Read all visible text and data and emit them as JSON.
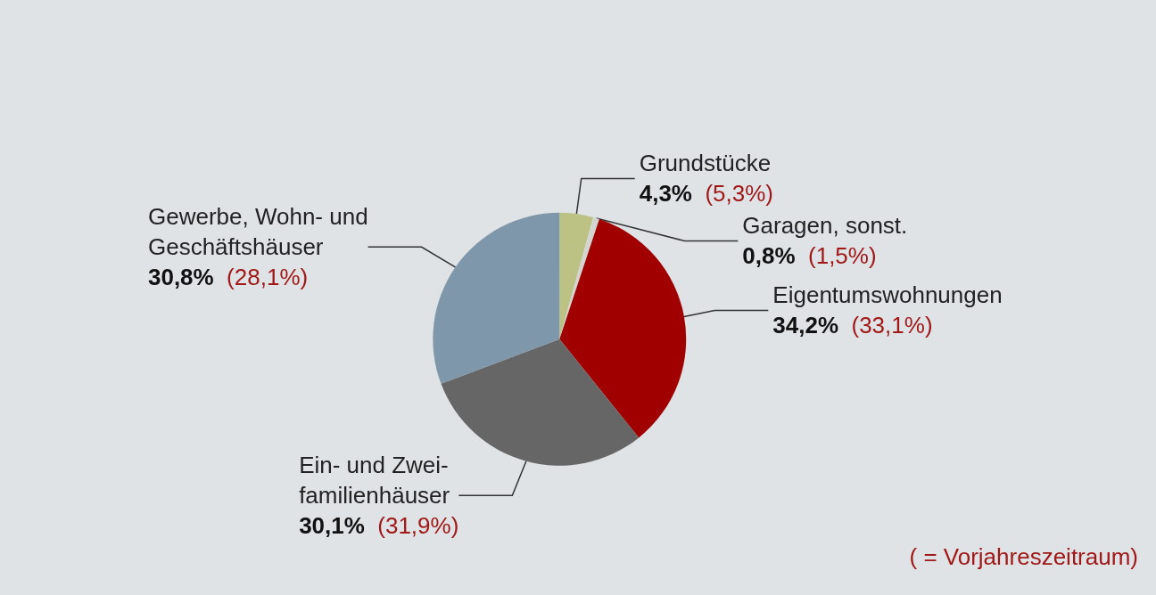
{
  "chart_data": {
    "type": "pie",
    "categories": [
      "Grundstücke",
      "Garagen, sonst.",
      "Eigentumswohnungen",
      "Ein- und Zwei-\nfamilienhäuser",
      "Gewerbe, Wohn- und\nGeschäftshäuser"
    ],
    "values": [
      4.3,
      0.8,
      34.2,
      30.1,
      30.8
    ],
    "value_labels": [
      "4,3% (5,3%)",
      "0,8% (1,5%)",
      "34,2% (33,1%)",
      "30,1% (31,9%)",
      "30,8% (28,1%)"
    ],
    "colors": [
      "#bcc283",
      "#d3d6d0",
      "#a00000",
      "#666666",
      "#7f97aa"
    ],
    "annotations": [
      "( = Vorjahreszeitraum)"
    ],
    "legend": false
  }
}
